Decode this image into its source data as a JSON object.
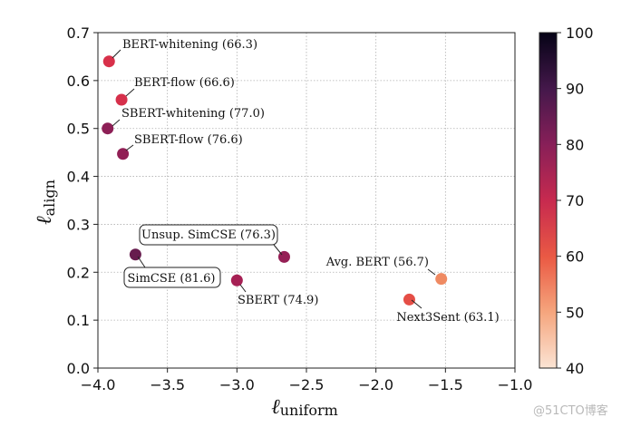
{
  "chart_data": {
    "type": "scatter",
    "title": "",
    "xlabel": "ℓ",
    "xlabel_sub": "uniform",
    "ylabel": "ℓ",
    "ylabel_sub": "align",
    "xlim": [
      -4.0,
      -1.0
    ],
    "ylim": [
      0.0,
      0.7
    ],
    "xticks": [
      -4.0,
      -3.5,
      -3.0,
      -2.5,
      -2.0,
      -1.5,
      -1.0
    ],
    "xtick_labels": [
      "−4.0",
      "−3.5",
      "−3.0",
      "−2.5",
      "−2.0",
      "−1.5",
      "−1.0"
    ],
    "yticks": [
      0.0,
      0.1,
      0.2,
      0.3,
      0.4,
      0.5,
      0.6,
      0.7
    ],
    "ytick_labels": [
      "0.0",
      "0.1",
      "0.2",
      "0.3",
      "0.4",
      "0.5",
      "0.6",
      "0.7"
    ],
    "grid": true,
    "colorbar": {
      "min": 40,
      "max": 100,
      "ticks": [
        40,
        50,
        60,
        70,
        80,
        90,
        100
      ],
      "tick_labels": [
        "40",
        "50",
        "60",
        "70",
        "80",
        "90",
        "100"
      ]
    },
    "points": [
      {
        "name": "BERT-whitening",
        "label": "BERT-whitening (66.3)",
        "x": -3.92,
        "y": 0.64,
        "score": 66.3,
        "color": "#d8304a",
        "boxed": false
      },
      {
        "name": "BERT-flow",
        "label": "BERT-flow (66.6)",
        "x": -3.83,
        "y": 0.56,
        "score": 66.6,
        "color": "#d6304b",
        "boxed": false
      },
      {
        "name": "SBERT-whitening",
        "label": "SBERT-whitening (77.0)",
        "x": -3.93,
        "y": 0.5,
        "score": 77.0,
        "color": "#8d1f56",
        "boxed": false
      },
      {
        "name": "SBERT-flow",
        "label": "SBERT-flow (76.6)",
        "x": -3.82,
        "y": 0.447,
        "score": 76.6,
        "color": "#911f55",
        "boxed": false
      },
      {
        "name": "Unsup. SimCSE",
        "label": "Unsup. SimCSE (76.3)",
        "x": -2.66,
        "y": 0.232,
        "score": 76.3,
        "color": "#951f55",
        "boxed": true
      },
      {
        "name": "SimCSE",
        "label": "SimCSE (81.6)",
        "x": -3.73,
        "y": 0.237,
        "score": 81.6,
        "color": "#671c4e",
        "boxed": true
      },
      {
        "name": "SBERT",
        "label": "SBERT (74.9)",
        "x": -3.0,
        "y": 0.183,
        "score": 74.9,
        "color": "#a62054",
        "boxed": false
      },
      {
        "name": "Avg. BERT",
        "label": "Avg. BERT (56.7)",
        "x": -1.53,
        "y": 0.186,
        "score": 56.7,
        "color": "#ef8a62",
        "boxed": false
      },
      {
        "name": "Next3Sent",
        "label": "Next3Sent (63.1)",
        "x": -1.76,
        "y": 0.143,
        "score": 63.1,
        "color": "#e54e46",
        "boxed": false
      }
    ]
  },
  "watermark": "@51CTO博客"
}
